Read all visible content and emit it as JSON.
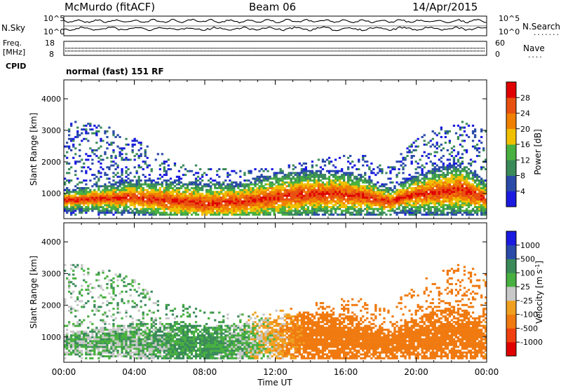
{
  "header": {
    "station": "McMurdo (fitACF)",
    "beam": "Beam 06",
    "date": "14/Apr/2015"
  },
  "noise_panel": {
    "left_label": "N.Sky",
    "right_label": "N.Search",
    "left_ticks": [
      "10^5",
      "10^0"
    ],
    "right_ticks": [
      "10^5",
      "10^0"
    ]
  },
  "freq_panel": {
    "left_label_1": "Freq.",
    "left_label_2": "[MHz]",
    "right_label": "Nave",
    "left_ticks": [
      "18",
      "8"
    ],
    "right_ticks": [
      "60",
      "0"
    ]
  },
  "cpid": {
    "label": "CPID",
    "text": "normal (fast) 151 RF"
  },
  "colors": {
    "power": [
      "#1a1ae0",
      "#2a4aa8",
      "#3a8a5a",
      "#48b040",
      "#f0c000",
      "#f08000",
      "#e85010",
      "#e00000"
    ],
    "velocity": [
      "#e00000",
      "#f04010",
      "#f07a10",
      "#f0a020",
      "#c8c8c8",
      "#48b040",
      "#3a8a5a",
      "#2a4aa8",
      "#1a1ae0"
    ]
  },
  "chart_data": [
    {
      "type": "heatmap",
      "parameter": "power",
      "ylabel": "Slant Range [km]",
      "colorbar_label": "Power [dB]",
      "colorbar_ticks": [
        "4",
        "8",
        "12",
        "16",
        "20",
        "24",
        "28"
      ],
      "y_ticks": [
        "1000",
        "2000",
        "3000",
        "4000"
      ],
      "ylim": [
        200,
        4600
      ],
      "x_range_hours": [
        0,
        24
      ],
      "layer_times_hours": [
        0,
        2,
        4,
        6,
        8,
        10,
        12,
        14,
        15.5,
        17,
        18.5,
        19.5,
        21,
        22.5,
        24
      ],
      "layer_center_km": [
        750,
        800,
        850,
        750,
        650,
        700,
        850,
        950,
        950,
        900,
        700,
        900,
        1000,
        1100,
        800
      ],
      "layer_halfwidth_km": [
        150,
        200,
        250,
        300,
        300,
        300,
        350,
        350,
        350,
        300,
        200,
        250,
        350,
        400,
        250
      ],
      "scatter_extent_km": [
        3300,
        3200,
        2800,
        2100,
        1800,
        1700,
        1800,
        2000,
        2200,
        2200,
        1800,
        2500,
        3000,
        3300,
        3000
      ]
    },
    {
      "type": "heatmap",
      "parameter": "velocity",
      "xlabel": "Time UT",
      "ylabel": "Slant Range [km]",
      "colorbar_label": "Velocity [m s^-1]",
      "colorbar_ticks": [
        "-1000",
        "-500",
        "-100",
        "-25",
        "25",
        "100",
        "500",
        "1000"
      ],
      "x_ticks": [
        "00:00",
        "04:00",
        "08:00",
        "12:00",
        "16:00",
        "20:00",
        "00:00"
      ],
      "y_ticks": [
        "1000",
        "2000",
        "3000",
        "4000"
      ],
      "ylim": [
        200,
        4600
      ],
      "x_range_hours": [
        0,
        24
      ],
      "velocity_times_hours": [
        0,
        3,
        6,
        8,
        10,
        12,
        14,
        16,
        18,
        20,
        22,
        24
      ],
      "velocity_mean_ms": [
        60,
        80,
        90,
        120,
        60,
        -50,
        -200,
        -300,
        -250,
        -280,
        -300,
        -150
      ]
    }
  ]
}
